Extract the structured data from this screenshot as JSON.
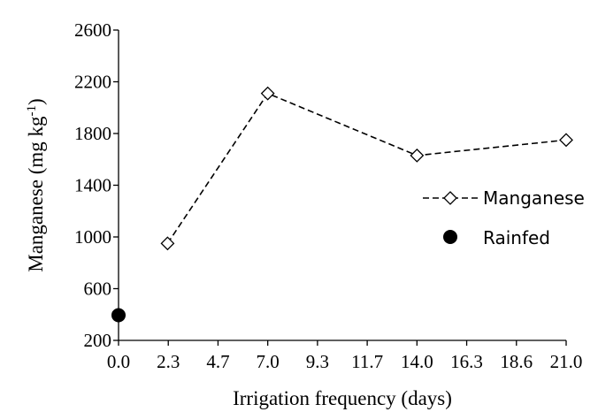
{
  "chart_data": {
    "type": "scatter",
    "title": "",
    "xlabel": "Irrigation frequency (days)",
    "ylabel": {
      "text": "Manganese (mg kg",
      "sup": "-1",
      "close": ")"
    },
    "x_ticks": [
      "0.0",
      "2.3",
      "4.7",
      "7.0",
      "9.3",
      "11.7",
      "14.0",
      "16.3",
      "18.6",
      "21.0"
    ],
    "y_ticks": [
      "200",
      "600",
      "1000",
      "1400",
      "1800",
      "2200",
      "2600"
    ],
    "xlim": [
      0,
      21
    ],
    "ylim": [
      200,
      2600
    ],
    "grid": false,
    "legend_position": "right",
    "series": [
      {
        "name": "Manganese",
        "style": "dashed-line-open-diamond",
        "x": [
          2.3,
          7.0,
          14.0,
          21.0
        ],
        "y": [
          950,
          2110,
          1630,
          1750
        ]
      },
      {
        "name": "Rainfed",
        "style": "filled-circle",
        "x": [
          0.0
        ],
        "y": [
          395
        ]
      }
    ]
  }
}
